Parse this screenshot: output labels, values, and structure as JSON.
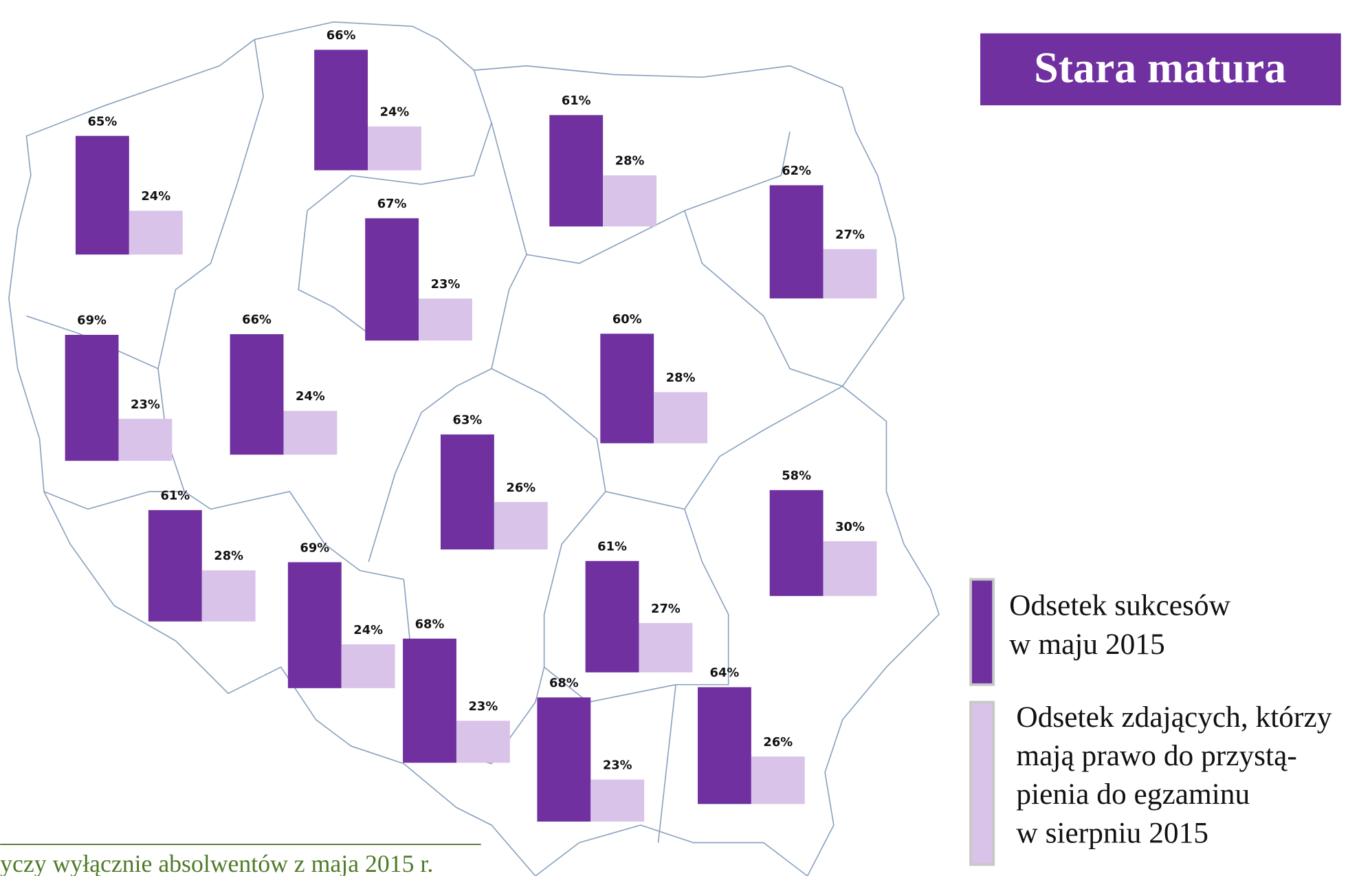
{
  "chart_data": {
    "type": "bar",
    "title": "Stara matura",
    "footnote": "yczy wyłącznie absolwentów z maja 2015 r.",
    "categories": [
      null,
      null,
      null,
      null,
      null,
      null,
      null,
      null,
      null,
      null,
      null,
      null,
      null,
      null,
      null,
      null
    ],
    "series": [
      {
        "name": "Odsetek sukcesów\nw maju 2015",
        "color": "#7030a0",
        "values": [
          65,
          66,
          61,
          62,
          67,
          69,
          66,
          60,
          63,
          58,
          61,
          69,
          61,
          68,
          68,
          64
        ],
        "value_labels": [
          "65%",
          "66%",
          "61%",
          "62%",
          "67%",
          "69%",
          "66%",
          "60%",
          "63%",
          "58%",
          "61%",
          "69%",
          "61%",
          "68%",
          "68%",
          "64%"
        ]
      },
      {
        "name": "Odsetek zdających, którzy\nmają prawo do przystą-\npienia do egzaminu\nw sierpniu 2015",
        "color": "#d9c3e9",
        "values": [
          24,
          24,
          28,
          27,
          23,
          23,
          24,
          28,
          26,
          30,
          28,
          24,
          27,
          23,
          23,
          26
        ],
        "value_labels": [
          "24%",
          "24%",
          "28%",
          "27%",
          "23%",
          "23%",
          "24%",
          "28%",
          "26%",
          "30%",
          "28%",
          "24%",
          "27%",
          "23%",
          "23%",
          "26%"
        ]
      }
    ]
  }
}
